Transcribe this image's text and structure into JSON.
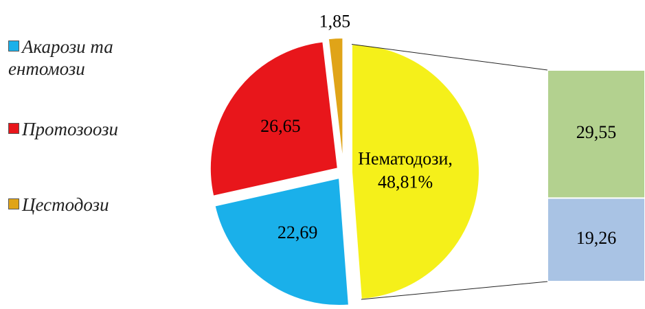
{
  "chart_data": {
    "type": "pie-of-bar",
    "categories": [
      "Акарози та ентомози",
      "Протозоози",
      "Цестодози",
      "Нематодози,"
    ],
    "values": [
      22.69,
      26.65,
      1.85,
      48.81
    ],
    "value_labels": [
      "22,69",
      "26,65",
      "1,85",
      "48,81%"
    ],
    "colors": [
      "#1ab0ea",
      "#e8161b",
      "#e0a418",
      "#f5f01a"
    ],
    "split_index": 3,
    "bar_values": [
      29.55,
      19.26
    ],
    "bar_value_labels": [
      "29,55",
      "19,26"
    ],
    "bar_colors": [
      "#b3d18f",
      "#a9c3e4"
    ]
  }
}
